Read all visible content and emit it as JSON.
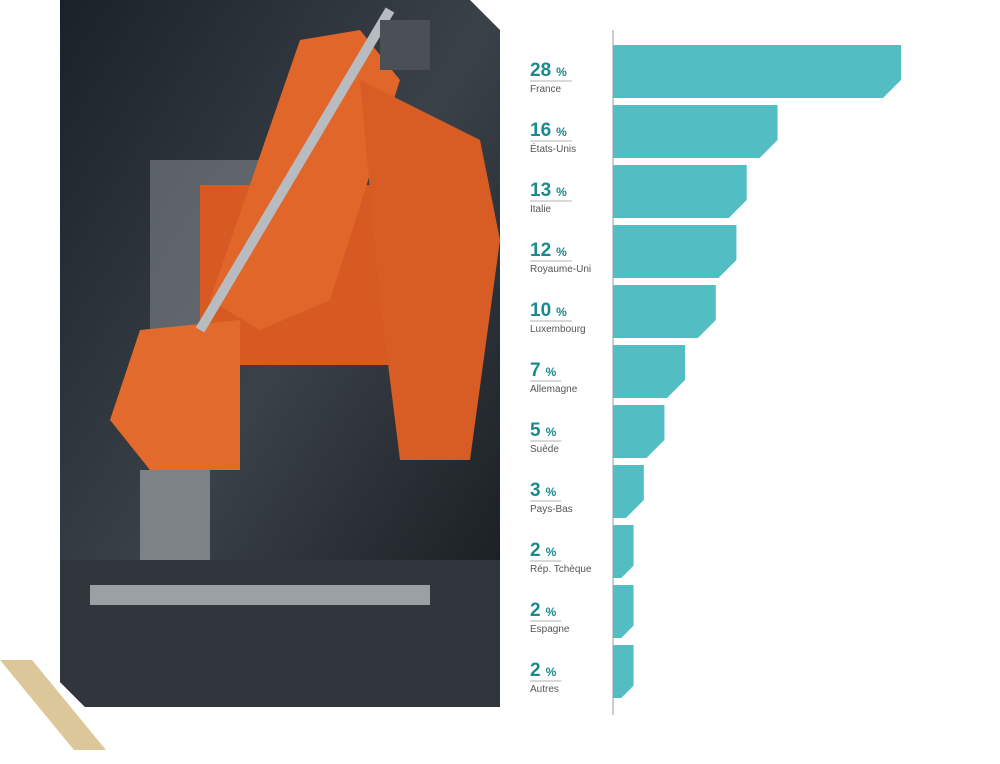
{
  "chart_data": {
    "type": "bar",
    "categories": [
      "France",
      "États-Unis",
      "Italie",
      "Royaume-Uni",
      "Luxembourg",
      "Allemagne",
      "Suède",
      "Pays-Bas",
      "Rép. Tchèque",
      "Espagne",
      "Autres"
    ],
    "values": [
      28,
      16,
      13,
      12,
      10,
      7,
      5,
      3,
      2,
      2,
      2
    ],
    "unit": "%",
    "color": "#52bec4"
  }
}
